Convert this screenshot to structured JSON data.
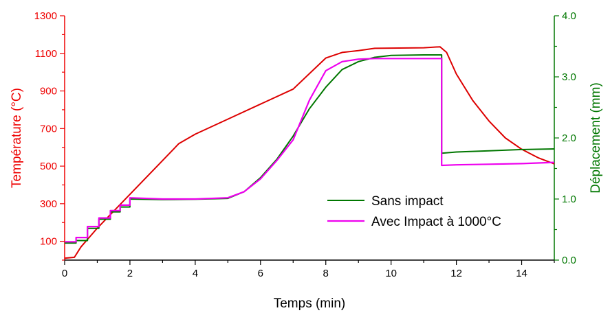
{
  "chart_data": {
    "type": "line",
    "xlabel": "Temps (min)",
    "ylabel_left": "Température (°C)",
    "ylabel_right": "Déplacement (mm)",
    "xlim": [
      0,
      15
    ],
    "ylim_left": [
      0,
      1300
    ],
    "ylim_right": [
      0,
      4.0
    ],
    "x_ticks": [
      "0",
      "2",
      "4",
      "6",
      "8",
      "10",
      "12",
      "14"
    ],
    "y_left_ticks": [
      "100",
      "300",
      "500",
      "700",
      "900",
      "1100",
      "1300"
    ],
    "y_right_ticks": [
      "0.0",
      "1.0",
      "2.0",
      "3.0",
      "4.0"
    ],
    "grid": false,
    "legend_position": "lower-right",
    "colors": {
      "left_axis": "#ee0000",
      "right_axis": "#007700",
      "temperature": "#dd0000",
      "sans_impact": "#007700",
      "avec_impact": "#ee00ee"
    },
    "series": [
      {
        "axis": "left",
        "color_key": "temperature",
        "x": [
          0,
          0.3,
          0.5,
          1.0,
          2.0,
          3.0,
          3.5,
          4.0,
          5.0,
          6.0,
          7.0,
          8.0,
          8.5,
          9.0,
          9.5,
          10.0,
          11.0,
          11.5,
          11.7,
          12.0,
          12.5,
          13.0,
          13.5,
          14.0,
          14.5,
          15.0
        ],
        "values": [
          10,
          15,
          70,
          170,
          350,
          530,
          620,
          670,
          750,
          830,
          910,
          1075,
          1105,
          1115,
          1127,
          1128,
          1130,
          1135,
          1105,
          990,
          850,
          740,
          650,
          590,
          545,
          512
        ]
      },
      {
        "name": "Sans impact",
        "axis": "right",
        "color_key": "sans_impact",
        "x": [
          0,
          0.35,
          0.35,
          0.7,
          0.7,
          1.05,
          1.05,
          1.4,
          1.4,
          1.7,
          1.7,
          2.0,
          2.0,
          3.0,
          4.0,
          5.0,
          5.5,
          6.0,
          6.5,
          7.0,
          7.5,
          8.0,
          8.5,
          9.0,
          9.5,
          10.0,
          11.0,
          11.55,
          11.55,
          12.0,
          13.0,
          14.0,
          15.0
        ],
        "values": [
          0.28,
          0.28,
          0.32,
          0.32,
          0.52,
          0.52,
          0.67,
          0.67,
          0.79,
          0.79,
          0.87,
          0.87,
          1.0,
          0.99,
          0.995,
          1.01,
          1.12,
          1.35,
          1.65,
          2.03,
          2.48,
          2.83,
          3.12,
          3.25,
          3.32,
          3.35,
          3.36,
          3.36,
          1.75,
          1.77,
          1.79,
          1.81,
          1.82
        ]
      },
      {
        "name": "Avec Impact à 1000°C",
        "axis": "right",
        "color_key": "avec_impact",
        "x": [
          0,
          0.35,
          0.35,
          0.7,
          0.7,
          1.05,
          1.05,
          1.4,
          1.4,
          1.7,
          1.7,
          2.0,
          2.0,
          3.0,
          4.0,
          5.0,
          5.5,
          6.0,
          6.5,
          7.0,
          7.5,
          8.0,
          8.5,
          9.0,
          9.5,
          10.0,
          11.0,
          11.55,
          11.55,
          12.0,
          13.0,
          14.0,
          15.0
        ],
        "values": [
          0.3,
          0.3,
          0.37,
          0.37,
          0.55,
          0.55,
          0.69,
          0.69,
          0.81,
          0.81,
          0.9,
          0.9,
          1.02,
          1.0,
          1.0,
          1.02,
          1.12,
          1.33,
          1.63,
          1.97,
          2.62,
          3.1,
          3.25,
          3.29,
          3.3,
          3.3,
          3.3,
          3.3,
          1.55,
          1.56,
          1.57,
          1.58,
          1.6
        ]
      }
    ]
  }
}
